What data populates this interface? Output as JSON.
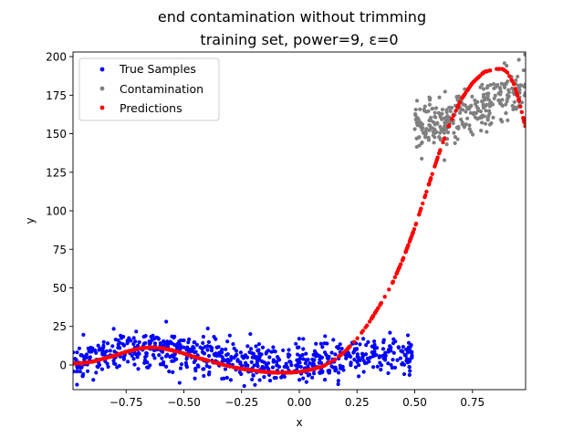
{
  "chart_data": {
    "type": "scatter",
    "title": "end contamination without trimming",
    "subtitle": "training set, power=9, ε=0",
    "xlabel": "x",
    "ylabel": "y",
    "xlim": [
      -0.98,
      0.98
    ],
    "ylim": [
      -16,
      203
    ],
    "xticks": [
      -0.75,
      -0.5,
      -0.25,
      0.0,
      0.25,
      0.5,
      0.75
    ],
    "xtick_labels": [
      "−0.75",
      "−0.50",
      "−0.25",
      "0.00",
      "0.25",
      "0.50",
      "0.75"
    ],
    "yticks": [
      0,
      25,
      50,
      75,
      100,
      125,
      150,
      175,
      200
    ],
    "ytick_labels": [
      "0",
      "25",
      "50",
      "75",
      "100",
      "125",
      "150",
      "175",
      "200"
    ],
    "grid": false,
    "legend_position": "upper-left",
    "series": [
      {
        "name": "True Samples",
        "color": "#0000ff",
        "marker": "dot",
        "x_range": [
          -0.98,
          0.49
        ],
        "trend_x": [
          -0.98,
          -0.9,
          -0.8,
          -0.7,
          -0.6,
          -0.5,
          -0.4,
          -0.3,
          -0.2,
          -0.1,
          0.0,
          0.1,
          0.2,
          0.3,
          0.4,
          0.49
        ],
        "trend_y": [
          2,
          4,
          7,
          10,
          11,
          9,
          7,
          4,
          2,
          1,
          0,
          2,
          4,
          7,
          8,
          8
        ],
        "noise_sd": 6.5,
        "count": 700
      },
      {
        "name": "Contamination",
        "color": "#808080",
        "marker": "dot",
        "x_range": [
          0.5,
          0.98
        ],
        "trend_x": [
          0.5,
          0.6,
          0.7,
          0.8,
          0.9,
          0.98
        ],
        "trend_y": [
          154,
          158,
          162,
          166,
          174,
          184
        ],
        "noise_sd": 8,
        "count": 300
      },
      {
        "name": "Predictions",
        "color": "#ff0000",
        "marker": "dot",
        "x": [
          -0.98,
          -0.95,
          -0.9,
          -0.85,
          -0.8,
          -0.75,
          -0.7,
          -0.65,
          -0.6,
          -0.55,
          -0.5,
          -0.45,
          -0.4,
          -0.35,
          -0.3,
          -0.25,
          -0.2,
          -0.15,
          -0.1,
          -0.05,
          0.0,
          0.05,
          0.1,
          0.15,
          0.2,
          0.25,
          0.3,
          0.35,
          0.4,
          0.45,
          0.5,
          0.55,
          0.6,
          0.65,
          0.7,
          0.75,
          0.8,
          0.85,
          0.88,
          0.9,
          0.93,
          0.95,
          0.98
        ],
        "y": [
          1,
          1,
          2,
          4,
          6,
          8.5,
          10.5,
          11.5,
          11,
          9.5,
          7.5,
          5,
          3,
          1,
          -1,
          -2.5,
          -3.5,
          -4.5,
          -5,
          -5,
          -4.5,
          -3,
          -1,
          3,
          9,
          17,
          27,
          39,
          52,
          69,
          89,
          112,
          135,
          156,
          172,
          183,
          190,
          192,
          192,
          190,
          182,
          172,
          154
        ],
        "count": 500
      }
    ]
  }
}
